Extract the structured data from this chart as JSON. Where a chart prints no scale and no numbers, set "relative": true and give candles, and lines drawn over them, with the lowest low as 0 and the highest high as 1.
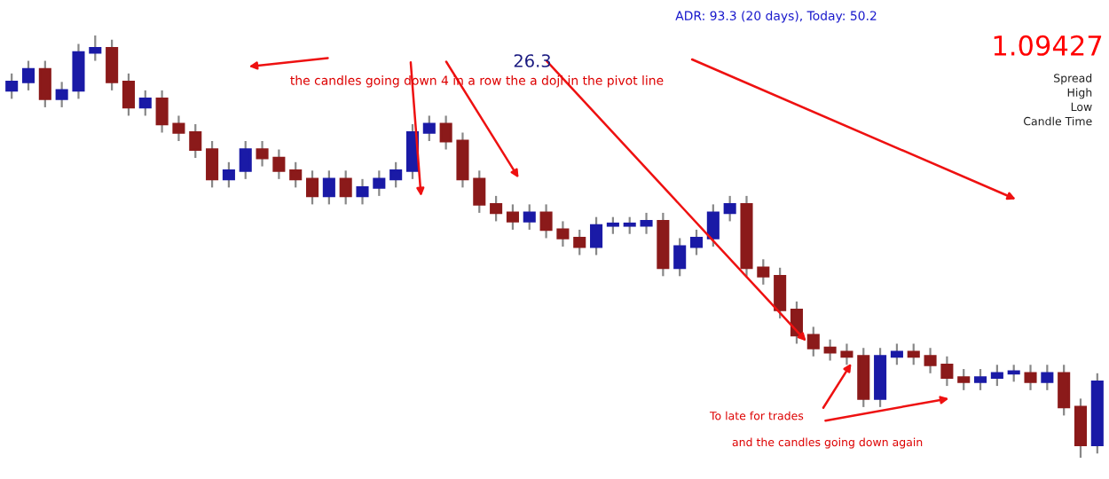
{
  "chart_data": {
    "type": "candlestick",
    "relative": true,
    "categories": [
      null,
      null,
      null,
      null,
      null,
      null,
      null,
      null,
      null,
      null,
      null,
      null,
      null,
      null,
      null,
      null,
      null,
      null,
      null,
      null,
      null,
      null,
      null,
      null,
      null,
      null,
      null,
      null,
      null,
      null,
      null,
      null,
      null,
      null,
      null,
      null,
      null,
      null,
      null,
      null,
      null,
      null,
      null,
      null,
      null,
      null,
      null,
      null,
      null,
      null,
      null,
      null,
      null,
      null,
      null,
      null,
      null,
      null,
      null,
      null,
      null,
      null,
      null,
      null,
      null,
      null
    ],
    "ohlc": [
      [
        0.87,
        0.91,
        0.85,
        0.89
      ],
      [
        0.89,
        0.94,
        0.87,
        0.92
      ],
      [
        0.92,
        0.94,
        0.83,
        0.85
      ],
      [
        0.85,
        0.89,
        0.83,
        0.87
      ],
      [
        0.87,
        0.98,
        0.85,
        0.96
      ],
      [
        0.96,
        1.0,
        0.94,
        0.97
      ],
      [
        0.97,
        0.99,
        0.87,
        0.89
      ],
      [
        0.89,
        0.91,
        0.81,
        0.83
      ],
      [
        0.83,
        0.87,
        0.81,
        0.85
      ],
      [
        0.85,
        0.87,
        0.77,
        0.79
      ],
      [
        0.79,
        0.81,
        0.75,
        0.77
      ],
      [
        0.77,
        0.79,
        0.71,
        0.73
      ],
      [
        0.73,
        0.75,
        0.64,
        0.66
      ],
      [
        0.66,
        0.7,
        0.64,
        0.68
      ],
      [
        0.68,
        0.75,
        0.66,
        0.73
      ],
      [
        0.73,
        0.75,
        0.69,
        0.71
      ],
      [
        0.71,
        0.73,
        0.66,
        0.68
      ],
      [
        0.68,
        0.7,
        0.64,
        0.66
      ],
      [
        0.66,
        0.68,
        0.6,
        0.62
      ],
      [
        0.62,
        0.68,
        0.6,
        0.66
      ],
      [
        0.66,
        0.68,
        0.6,
        0.62
      ],
      [
        0.62,
        0.66,
        0.6,
        0.64
      ],
      [
        0.64,
        0.68,
        0.62,
        0.66
      ],
      [
        0.66,
        0.7,
        0.64,
        0.68
      ],
      [
        0.68,
        0.79,
        0.66,
        0.77
      ],
      [
        0.77,
        0.81,
        0.75,
        0.79
      ],
      [
        0.79,
        0.81,
        0.73,
        0.75
      ],
      [
        0.75,
        0.77,
        0.64,
        0.66
      ],
      [
        0.66,
        0.68,
        0.58,
        0.6
      ],
      [
        0.6,
        0.62,
        0.56,
        0.58
      ],
      [
        0.58,
        0.6,
        0.54,
        0.56
      ],
      [
        0.56,
        0.6,
        0.54,
        0.58
      ],
      [
        0.58,
        0.6,
        0.52,
        0.54
      ],
      [
        0.54,
        0.56,
        0.5,
        0.52
      ],
      [
        0.52,
        0.54,
        0.48,
        0.5
      ],
      [
        0.5,
        0.57,
        0.48,
        0.55
      ],
      [
        0.55,
        0.57,
        0.53,
        0.55
      ],
      [
        0.55,
        0.57,
        0.53,
        0.55
      ],
      [
        0.55,
        0.58,
        0.53,
        0.56
      ],
      [
        0.56,
        0.58,
        0.43,
        0.45
      ],
      [
        0.45,
        0.52,
        0.43,
        0.5
      ],
      [
        0.5,
        0.54,
        0.48,
        0.52
      ],
      [
        0.52,
        0.6,
        0.5,
        0.58
      ],
      [
        0.58,
        0.62,
        0.56,
        0.6
      ],
      [
        0.6,
        0.62,
        0.43,
        0.45
      ],
      [
        0.45,
        0.47,
        0.41,
        0.43
      ],
      [
        0.43,
        0.45,
        0.33,
        0.35
      ],
      [
        0.35,
        0.37,
        0.27,
        0.29
      ],
      [
        0.29,
        0.31,
        0.24,
        0.26
      ],
      [
        0.26,
        0.28,
        0.23,
        0.25
      ],
      [
        0.25,
        0.27,
        0.22,
        0.24
      ],
      [
        0.24,
        0.26,
        0.12,
        0.14
      ],
      [
        0.14,
        0.26,
        0.12,
        0.24
      ],
      [
        0.24,
        0.27,
        0.22,
        0.25
      ],
      [
        0.25,
        0.27,
        0.22,
        0.24
      ],
      [
        0.24,
        0.26,
        0.2,
        0.22
      ],
      [
        0.22,
        0.24,
        0.17,
        0.19
      ],
      [
        0.19,
        0.21,
        0.16,
        0.18
      ],
      [
        0.18,
        0.21,
        0.16,
        0.19
      ],
      [
        0.19,
        0.22,
        0.17,
        0.2
      ],
      [
        0.2,
        0.22,
        0.18,
        0.2
      ],
      [
        0.2,
        0.22,
        0.16,
        0.18
      ],
      [
        0.18,
        0.22,
        0.16,
        0.2
      ],
      [
        0.2,
        0.22,
        0.1,
        0.12
      ],
      [
        0.12,
        0.14,
        0.0,
        0.03
      ],
      [
        0.03,
        0.2,
        0.01,
        0.18
      ]
    ],
    "annotations": [
      "ADR: 93.3 (20 days), Today: 50.2",
      "26.3",
      "the candles going down 4 in a row the a doji in the pivot line",
      "1.09427",
      "Spread",
      "High",
      "Low",
      "Candle Time",
      "To late for trades",
      "and the candles going down again"
    ]
  }
}
